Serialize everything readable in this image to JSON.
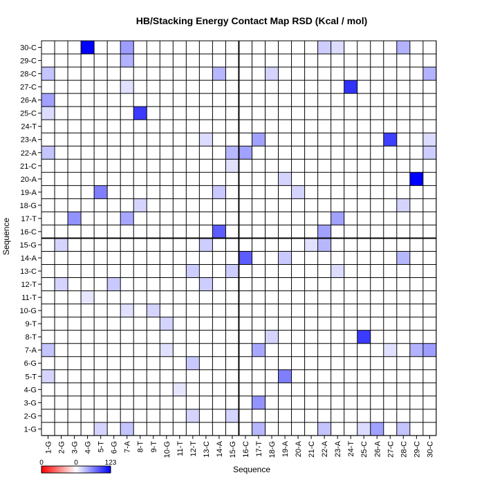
{
  "chart_data": {
    "type": "heatmap",
    "title": "HB/Stacking Energy Contact Map RSD (Kcal / mol)",
    "xlabel": "Sequence",
    "ylabel": "Sequence",
    "x_labels": [
      "1-G",
      "2-G",
      "3-G",
      "4-G",
      "5-T",
      "6-G",
      "7-A",
      "8-T",
      "9-T",
      "10-G",
      "11-T",
      "12-T",
      "13-C",
      "14-A",
      "15-G",
      "16-C",
      "17-T",
      "18-G",
      "19-A",
      "20-A",
      "21-C",
      "22-A",
      "23-A",
      "24-T",
      "25-C",
      "26-A",
      "27-C",
      "28-C",
      "29-C",
      "30-C"
    ],
    "y_labels": [
      "1-G",
      "2-G",
      "3-G",
      "4-G",
      "5-T",
      "6-G",
      "7-A",
      "8-T",
      "9-T",
      "10-G",
      "11-T",
      "12-T",
      "13-C",
      "14-A",
      "15-G",
      "16-C",
      "17-T",
      "18-G",
      "19-A",
      "20-A",
      "21-C",
      "22-A",
      "23-A",
      "24-T",
      "25-C",
      "26-A",
      "27-C",
      "28-C",
      "29-C",
      "30-C"
    ],
    "value_range": [
      0,
      123
    ],
    "colorbar": {
      "min_label": "0",
      "mid_label": "0",
      "max_label": "123",
      "low_color": "#ff0000",
      "mid_color": "#ffffff",
      "high_color": "#0000ff"
    },
    "divider_after_index": 14,
    "cells": [
      [
        3,
        29,
        123
      ],
      [
        28,
        19,
        123
      ],
      [
        23,
        26,
        95
      ],
      [
        7,
        24,
        90
      ],
      [
        26,
        22,
        88
      ],
      [
        24,
        7,
        90
      ],
      [
        15,
        13,
        72
      ],
      [
        13,
        15,
        72
      ],
      [
        4,
        18,
        55
      ],
      [
        18,
        4,
        55
      ],
      [
        2,
        16,
        45
      ],
      [
        16,
        2,
        45
      ],
      [
        21,
        15,
        38
      ],
      [
        15,
        21,
        38
      ],
      [
        16,
        22,
        38
      ],
      [
        22,
        16,
        38
      ],
      [
        6,
        29,
        40
      ],
      [
        29,
        6,
        40
      ],
      [
        0,
        25,
        38
      ],
      [
        25,
        0,
        38
      ],
      [
        16,
        6,
        35
      ],
      [
        6,
        16,
        35
      ],
      [
        16,
        0,
        28
      ],
      [
        27,
        13,
        28
      ],
      [
        13,
        27,
        28
      ],
      [
        27,
        29,
        30
      ],
      [
        29,
        27,
        30
      ],
      [
        28,
        6,
        30
      ],
      [
        6,
        28,
        30
      ],
      [
        14,
        21,
        28
      ],
      [
        21,
        14,
        28
      ],
      [
        0,
        21,
        22
      ],
      [
        21,
        0,
        22
      ],
      [
        0,
        6,
        22
      ],
      [
        0,
        27,
        22
      ],
      [
        27,
        0,
        22
      ],
      [
        6,
        0,
        22
      ],
      [
        11,
        5,
        20
      ],
      [
        5,
        11,
        20
      ],
      [
        13,
        18,
        20
      ],
      [
        18,
        13,
        20
      ],
      [
        12,
        14,
        18
      ],
      [
        14,
        12,
        18
      ],
      [
        11,
        12,
        18
      ],
      [
        12,
        11,
        18
      ],
      [
        21,
        29,
        18
      ],
      [
        29,
        21,
        18
      ],
      [
        1,
        11,
        15
      ],
      [
        11,
        1,
        15
      ],
      [
        1,
        14,
        15
      ],
      [
        14,
        1,
        15
      ],
      [
        0,
        4,
        15
      ],
      [
        4,
        0,
        15
      ],
      [
        0,
        24,
        12
      ],
      [
        24,
        0,
        12
      ],
      [
        7,
        17,
        15
      ],
      [
        17,
        7,
        15
      ],
      [
        9,
        8,
        15
      ],
      [
        8,
        9,
        15
      ],
      [
        17,
        27,
        15
      ],
      [
        27,
        17,
        15
      ],
      [
        18,
        19,
        15
      ],
      [
        19,
        18,
        15
      ],
      [
        29,
        22,
        12
      ],
      [
        22,
        29,
        12
      ],
      [
        12,
        22,
        12
      ],
      [
        22,
        12,
        12
      ],
      [
        6,
        26,
        10
      ],
      [
        26,
        6,
        10
      ],
      [
        9,
        6,
        10
      ],
      [
        6,
        9,
        10
      ],
      [
        3,
        10,
        8
      ],
      [
        10,
        3,
        8
      ],
      [
        20,
        14,
        10
      ],
      [
        14,
        20,
        10
      ]
    ]
  }
}
